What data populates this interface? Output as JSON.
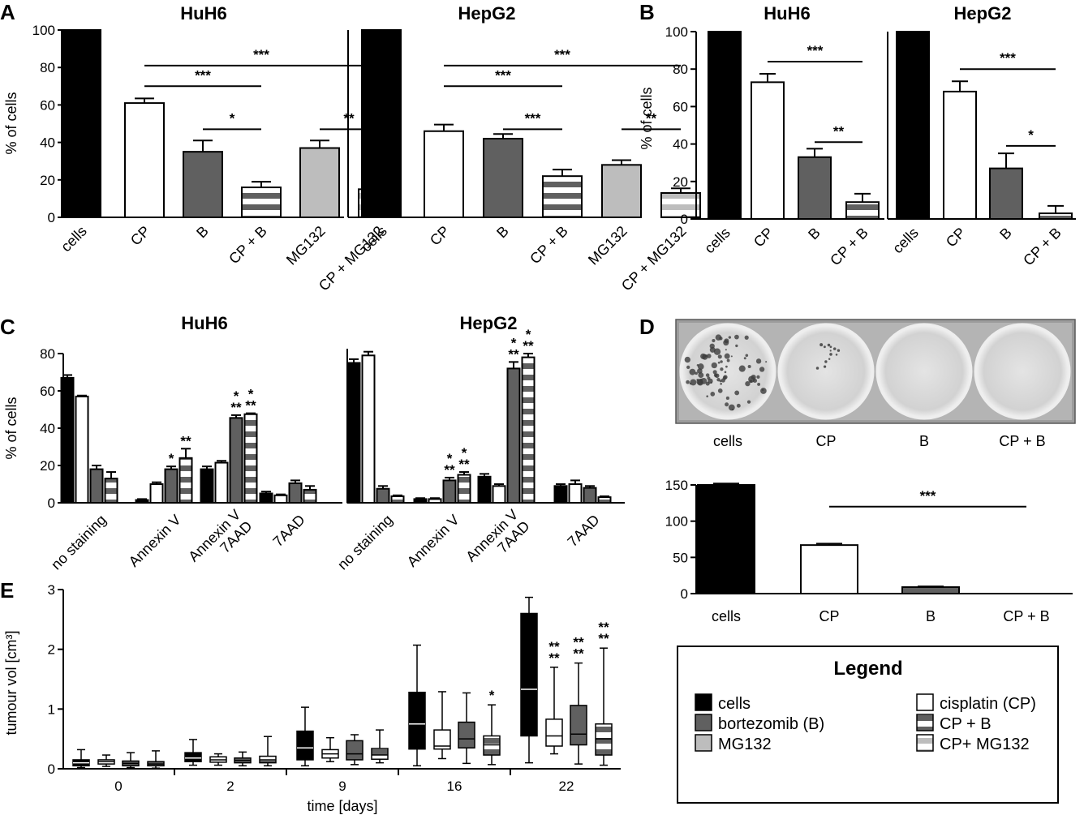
{
  "panels": {
    "A": "A",
    "B": "B",
    "C": "C",
    "D": "D",
    "E": "E"
  },
  "legend": {
    "title": "Legend",
    "items": [
      {
        "label": "cells",
        "fill": "#000000",
        "pattern": "solid"
      },
      {
        "label": "bortezomib (B)",
        "fill": "#606060",
        "pattern": "solid"
      },
      {
        "label": "MG132",
        "fill": "#bdbdbd",
        "pattern": "solid"
      },
      {
        "label": "cisplatin (CP)",
        "fill": "#ffffff",
        "pattern": "solid"
      },
      {
        "label": "CP + B",
        "fill": "#606060",
        "pattern": "stripe"
      },
      {
        "label": "CP+ MG132",
        "fill": "#bdbdbd",
        "pattern": "stripe"
      }
    ]
  },
  "plate_labels": [
    "cells",
    "CP",
    "B",
    "CP + B"
  ],
  "chart_data": [
    {
      "id": "A",
      "type": "bar",
      "ylabel": "% of cells",
      "ylim": [
        0,
        100
      ],
      "yticks": [
        0,
        20,
        40,
        60,
        80,
        100
      ],
      "subcharts": [
        {
          "title": "HuH6",
          "categories": [
            "cells",
            "CP",
            "B",
            "CP + B",
            "MG132",
            "CP + MG132"
          ],
          "values": [
            100,
            61,
            35,
            16,
            37,
            15
          ],
          "errors": [
            0,
            2.5,
            6,
            3,
            4,
            4
          ],
          "significance": [
            {
              "from": 1,
              "to": 5,
              "y": 81,
              "label": "***"
            },
            {
              "from": 1,
              "to": 3,
              "y": 70,
              "label": "***"
            },
            {
              "from": 2,
              "to": 3,
              "y": 47,
              "label": "*"
            },
            {
              "from": 4,
              "to": 5,
              "y": 47,
              "label": "**"
            }
          ]
        },
        {
          "title": "HepG2",
          "categories": [
            "cells",
            "CP",
            "B",
            "CP + B",
            "MG132",
            "CP + MG132"
          ],
          "values": [
            100,
            46,
            42,
            22,
            28,
            13
          ],
          "errors": [
            0,
            3.5,
            2.5,
            3.5,
            2.5,
            2.5
          ],
          "significance": [
            {
              "from": 1,
              "to": 5,
              "y": 81,
              "label": "***"
            },
            {
              "from": 1,
              "to": 3,
              "y": 70,
              "label": "***"
            },
            {
              "from": 2,
              "to": 3,
              "y": 47,
              "label": "***"
            },
            {
              "from": 4,
              "to": 5,
              "y": 47,
              "label": "**"
            }
          ]
        }
      ]
    },
    {
      "id": "B",
      "type": "bar",
      "ylabel": "% of cells",
      "ylim": [
        0,
        100
      ],
      "yticks": [
        0,
        20,
        40,
        60,
        80,
        100
      ],
      "subcharts": [
        {
          "title": "HuH6",
          "categories": [
            "cells",
            "CP",
            "B",
            "CP + B"
          ],
          "values": [
            100,
            73,
            33,
            9
          ],
          "errors": [
            0,
            4.5,
            4.5,
            4.5
          ],
          "significance": [
            {
              "from": 1,
              "to": 3,
              "y": 84,
              "label": "***"
            },
            {
              "from": 2,
              "to": 3,
              "y": 41,
              "label": "**"
            }
          ]
        },
        {
          "title": "HepG2",
          "categories": [
            "cells",
            "CP",
            "B",
            "CP + B"
          ],
          "values": [
            100,
            68,
            27,
            3
          ],
          "errors": [
            0,
            5.5,
            8,
            4
          ],
          "significance": [
            {
              "from": 1,
              "to": 3,
              "y": 80,
              "label": "***"
            },
            {
              "from": 2,
              "to": 3,
              "y": 39,
              "label": "*"
            }
          ]
        }
      ]
    },
    {
      "id": "C",
      "type": "bar",
      "ylabel": "% of cells",
      "ylim": [
        0,
        80
      ],
      "yticks": [
        0,
        20,
        40,
        60,
        80
      ],
      "subcharts": [
        {
          "title": "HuH6",
          "categories": [
            "no staining",
            "Annexin V",
            "Annexin V\n7AAD",
            "7AAD"
          ],
          "series": [
            {
              "values": [
                67,
                1.5,
                18,
                5
              ],
              "errors": [
                1.5,
                0.5,
                1.5,
                1
              ]
            },
            {
              "values": [
                57,
                10,
                21.5,
                4
              ],
              "errors": [
                0.5,
                1,
                1,
                0.5
              ]
            },
            {
              "values": [
                18,
                18,
                45.5,
                10.5
              ],
              "errors": [
                2,
                1.5,
                1.5,
                1.5
              ]
            },
            {
              "values": [
                13,
                24,
                47.5,
                7
              ],
              "errors": [
                3.5,
                5,
                0.5,
                2
              ]
            }
          ],
          "stars": [
            [
              "",
              "",
              "",
              ""
            ],
            [
              "",
              "",
              "",
              ""
            ],
            [
              "",
              "*",
              "*\n**",
              ""
            ],
            [
              "",
              "**",
              "*\n**",
              ""
            ]
          ]
        },
        {
          "title": "HepG2",
          "categories": [
            "no staining",
            "Annexin V",
            "Annexin V\n7AAD",
            "7AAD"
          ],
          "series": [
            {
              "values": [
                75,
                2,
                14,
                9
              ],
              "errors": [
                2,
                0.5,
                1.5,
                1
              ]
            },
            {
              "values": [
                79,
                2,
                9,
                10
              ],
              "errors": [
                2,
                0.5,
                1,
                2
              ]
            },
            {
              "values": [
                7.5,
                12,
                72,
                8
              ],
              "errors": [
                1.5,
                1.5,
                3.5,
                1
              ]
            },
            {
              "values": [
                3.5,
                15,
                78,
                3
              ],
              "errors": [
                0.5,
                1.5,
                2,
                0.5
              ]
            }
          ],
          "stars": [
            [
              "",
              "",
              "",
              ""
            ],
            [
              "",
              "",
              "",
              ""
            ],
            [
              "",
              "*\n**",
              "*\n**",
              ""
            ],
            [
              "",
              "*\n**",
              "*\n**",
              ""
            ]
          ]
        }
      ]
    },
    {
      "id": "D",
      "type": "bar",
      "ylim": [
        0,
        150
      ],
      "yticks": [
        0,
        50,
        100,
        150
      ],
      "categories": [
        "cells",
        "CP",
        "B",
        "CP + B"
      ],
      "values": [
        150,
        67,
        9,
        0
      ],
      "errors": [
        2,
        2,
        1,
        0
      ],
      "significance": [
        {
          "from": 1,
          "to": 3,
          "y": 120,
          "label": "***"
        }
      ]
    },
    {
      "id": "E",
      "type": "box",
      "xlabel": "time [days]",
      "ylabel": "tumour vol [cm³]",
      "ylim": [
        0,
        3
      ],
      "yticks": [
        0,
        1,
        2,
        3
      ],
      "groups": [
        "0",
        "2",
        "9",
        "16",
        "22"
      ],
      "boxes": [
        [
          {
            "min": 0.02,
            "q1": 0.05,
            "med": 0.1,
            "q3": 0.15,
            "max": 0.32
          },
          {
            "min": 0.04,
            "q1": 0.08,
            "med": 0.12,
            "q3": 0.15,
            "max": 0.23
          },
          {
            "min": 0.02,
            "q1": 0.05,
            "med": 0.09,
            "q3": 0.13,
            "max": 0.27
          },
          {
            "min": 0.01,
            "q1": 0.05,
            "med": 0.08,
            "q3": 0.12,
            "max": 0.3
          }
        ],
        [
          {
            "min": 0.06,
            "q1": 0.12,
            "med": 0.18,
            "q3": 0.27,
            "max": 0.49
          },
          {
            "min": 0.06,
            "q1": 0.11,
            "med": 0.15,
            "q3": 0.2,
            "max": 0.25
          },
          {
            "min": 0.05,
            "q1": 0.1,
            "med": 0.14,
            "q3": 0.18,
            "max": 0.28
          },
          {
            "min": 0.05,
            "q1": 0.1,
            "med": 0.15,
            "q3": 0.21,
            "max": 0.54
          }
        ],
        [
          {
            "min": 0.05,
            "q1": 0.15,
            "med": 0.35,
            "q3": 0.63,
            "max": 1.03
          },
          {
            "min": 0.12,
            "q1": 0.18,
            "med": 0.25,
            "q3": 0.32,
            "max": 0.52
          },
          {
            "min": 0.07,
            "q1": 0.15,
            "med": 0.25,
            "q3": 0.47,
            "max": 0.57
          },
          {
            "min": 0.1,
            "q1": 0.16,
            "med": 0.23,
            "q3": 0.34,
            "max": 0.65
          }
        ],
        [
          {
            "min": 0.05,
            "q1": 0.33,
            "med": 0.75,
            "q3": 1.28,
            "max": 2.07
          },
          {
            "min": 0.17,
            "q1": 0.33,
            "med": 0.38,
            "q3": 0.65,
            "max": 1.29
          },
          {
            "min": 0.09,
            "q1": 0.35,
            "med": 0.5,
            "q3": 0.78,
            "max": 1.27
          },
          {
            "min": 0.07,
            "q1": 0.23,
            "med": 0.4,
            "q3": 0.55,
            "max": 1.07
          }
        ],
        [
          {
            "min": 0.1,
            "q1": 0.55,
            "med": 1.33,
            "q3": 2.6,
            "max": 2.87
          },
          {
            "min": 0.25,
            "q1": 0.38,
            "med": 0.55,
            "q3": 0.83,
            "max": 1.7
          },
          {
            "min": 0.08,
            "q1": 0.4,
            "med": 0.58,
            "q3": 1.06,
            "max": 1.77
          },
          {
            "min": 0.06,
            "q1": 0.23,
            "med": 0.5,
            "q3": 0.75,
            "max": 2.02
          }
        ]
      ],
      "stars": [
        [
          "",
          "",
          "",
          ""
        ],
        [
          "",
          "",
          "",
          ""
        ],
        [
          "",
          "",
          "",
          ""
        ],
        [
          "",
          "",
          "",
          "*"
        ],
        [
          "",
          "**\n**",
          "**\n**",
          "**\n**"
        ]
      ]
    }
  ]
}
